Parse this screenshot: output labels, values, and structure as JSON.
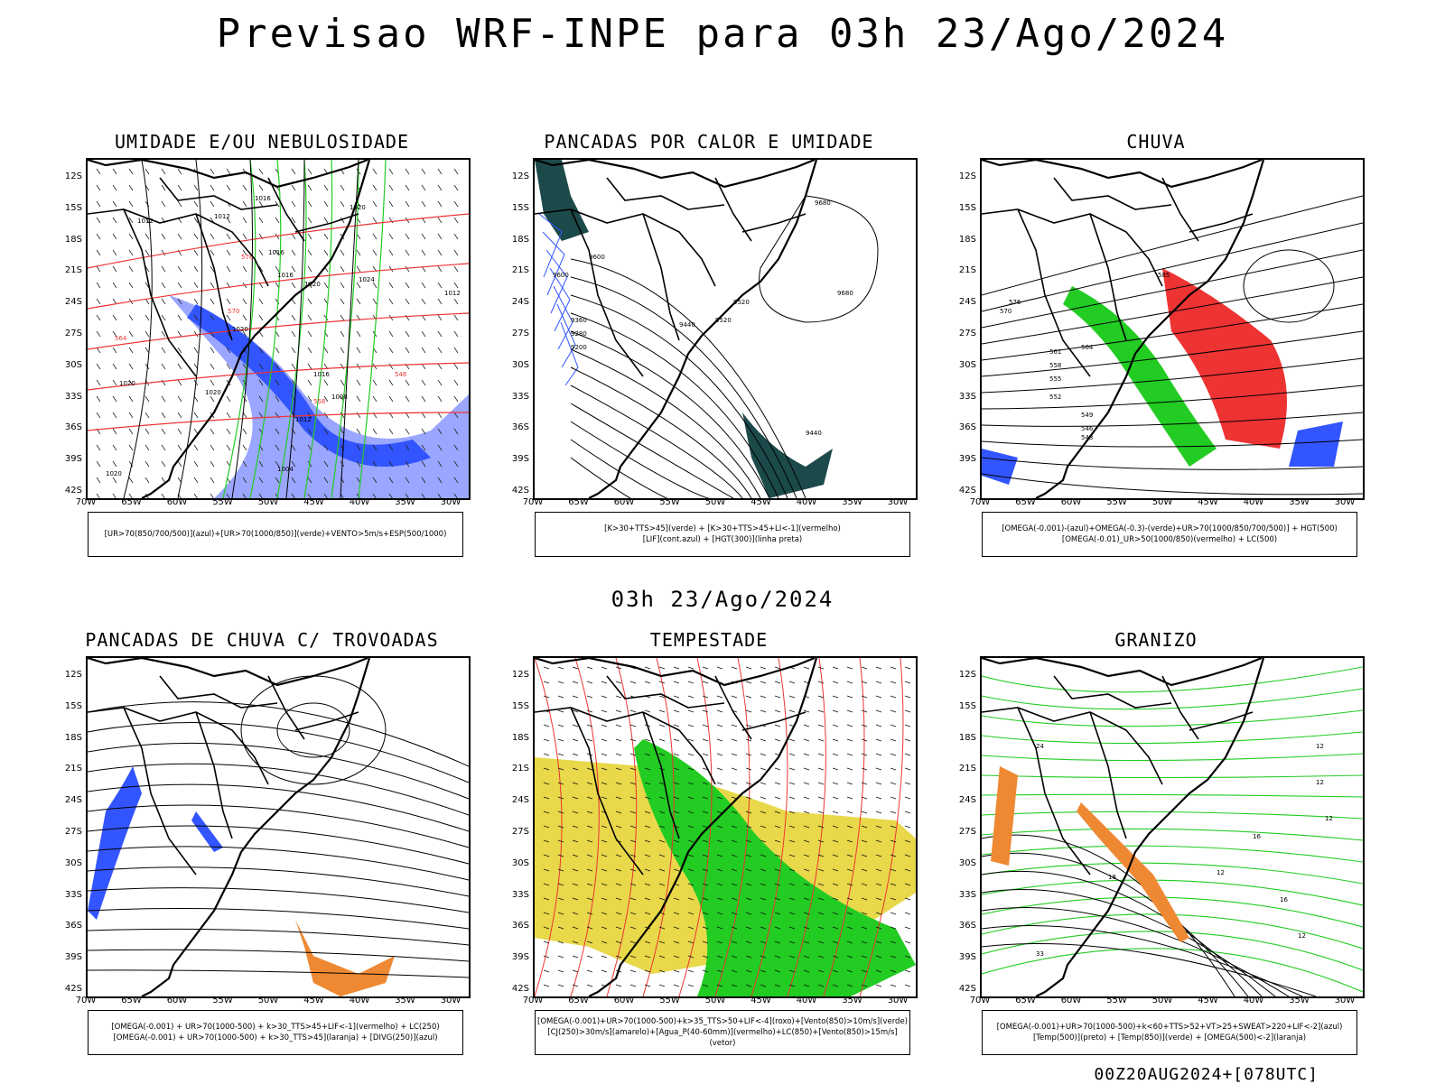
{
  "header": {
    "title": "Previsao WRF-INPE  para 03h 23/Ago/2024"
  },
  "middle": {
    "date": "03h 23/Ago/2024"
  },
  "footer": {
    "stamp": "00Z20AUG2024+[078UTC]"
  },
  "axes": {
    "lat_labels": [
      "12S",
      "15S",
      "18S",
      "21S",
      "24S",
      "27S",
      "30S",
      "33S",
      "36S",
      "39S",
      "42S"
    ],
    "lon_labels": [
      "70W",
      "65W",
      "60W",
      "55W",
      "50W",
      "45W",
      "40W",
      "35W",
      "30W"
    ]
  },
  "colors": {
    "green": "#22cc22",
    "red": "#ee3333",
    "blue": "#3355ff",
    "orange": "#ee8833",
    "yellow": "#e8d84a",
    "lightblue": "#9aa6ff",
    "teal": "#1c4a4a"
  },
  "panels": [
    {
      "title": "UMIDADE E/OU NEBULOSIDADE",
      "legend": [
        "[UR>70(850/700/500)](azul)+[UR>70(1000/850)](verde)+VENTO>5m/s+ESP(500/1000)"
      ],
      "contour_labels": [
        "1012",
        "1012",
        "1016",
        "1020",
        "1020",
        "1012",
        "1016",
        "1016",
        "1020",
        "1024",
        "1020",
        "1016",
        "1012",
        "1020",
        "1004",
        "1008",
        "1020",
        "576",
        "570",
        "558",
        "564",
        "546"
      ]
    },
    {
      "title": "PANCADAS POR CALOR E UMIDADE",
      "legend": [
        "[K>30+TTS>45](verde) + [K>30+TTS>45+LI<-1](vermelho)",
        "[LIF](cont.azul) + [HGT(300)](linha preta)"
      ],
      "contour_labels": [
        "9680",
        "9680",
        "9600",
        "9520",
        "9440",
        "9520",
        "9360",
        "9280",
        "9200",
        "9600",
        "9440"
      ]
    },
    {
      "title": "CHUVA",
      "legend": [
        "[OMEGA(-0.001)-(azul)+OMEGA(-0.3)-(verde)+UR>70(1000/850/700/500)] + HGT(500)",
        "[OMEGA(-0.01)_UR>50(1000/850)(vermelho) + LC(500)"
      ],
      "contour_labels": [
        "585",
        "561",
        "558",
        "555",
        "552",
        "549",
        "546",
        "543",
        "570",
        "576",
        "564"
      ]
    },
    {
      "title": "PANCADAS DE CHUVA C/ TROVOADAS",
      "legend": [
        "[OMEGA(-0.001) + UR>70(1000-500) + k>30_TTS>45+LIF<-1](vermelho) + LC(250)",
        "[OMEGA(-0.001) + UR>70(1000-500) + k>30_TTS>45](laranja) + [DIVG(250)](azul)"
      ],
      "contour_labels": []
    },
    {
      "title": "TEMPESTADE",
      "legend": [
        "[OMEGA(-0.001)+UR>70(1000-500)+k>35_TTS>50+LIF<-4](roxo)+[Vento(850)>10m/s](verde)",
        "[CJ(250)>30m/s](amarelo)+[Agua_P(40-60mm)](vermelho)+LC(850)+[Vento(850)>15m/s](vetor)"
      ],
      "contour_labels": []
    },
    {
      "title": "GRANIZO",
      "legend": [
        "[OMEGA(-0.001)+UR>70(1000-500)+k<60+TTS>52+VT>25+SWEAT>220+LIF<-2](azul)",
        "[Temp(500)](preto) + [Temp(850)](verde) + [OMEGA(500)<-2](laranja)"
      ],
      "contour_labels": [
        "12",
        "12",
        "12",
        "12",
        "16",
        "24",
        "33",
        "18",
        "16",
        "12"
      ]
    }
  ]
}
